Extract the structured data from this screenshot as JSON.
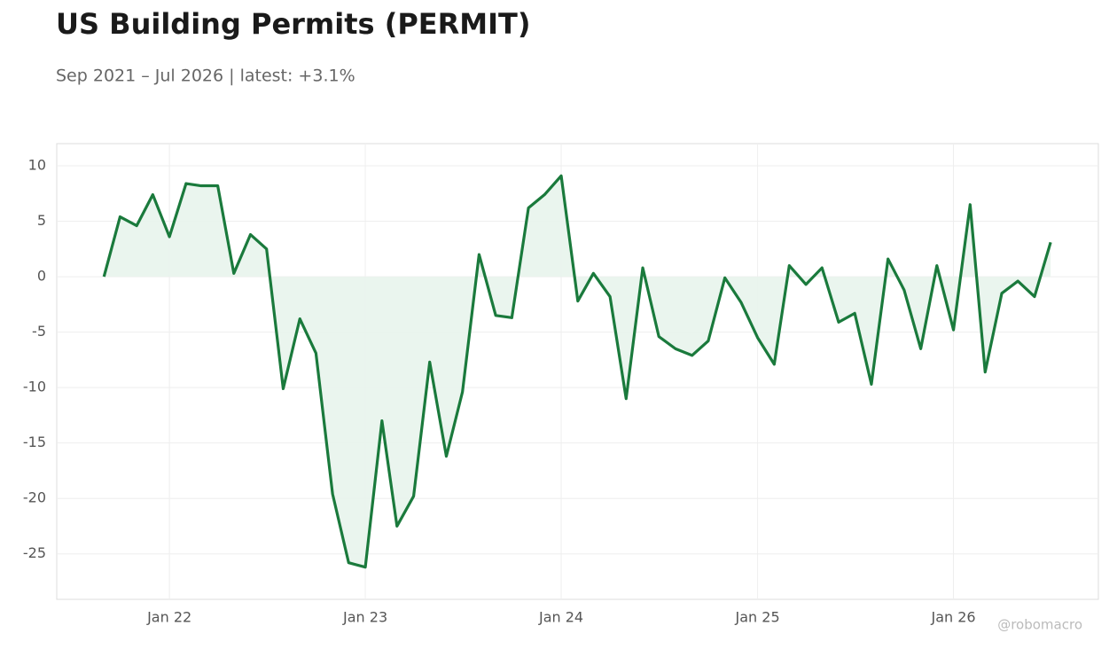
{
  "chart_data": {
    "type": "line",
    "title": "US Building Permits (PERMIT)",
    "subtitle": "Sep 2021 – Jul 2026 | latest: +3.1%",
    "watermark": "@robomacro",
    "x": [
      "2021-09",
      "2021-10",
      "2021-11",
      "2021-12",
      "2022-01",
      "2022-02",
      "2022-03",
      "2022-04",
      "2022-05",
      "2022-06",
      "2022-07",
      "2022-08",
      "2022-09",
      "2022-10",
      "2022-11",
      "2022-12",
      "2023-01",
      "2023-02",
      "2023-03",
      "2023-04",
      "2023-05",
      "2023-06",
      "2023-07",
      "2023-08",
      "2023-09",
      "2023-10",
      "2023-11",
      "2023-12",
      "2024-01",
      "2024-02",
      "2024-03",
      "2024-04",
      "2024-05",
      "2024-06",
      "2024-07",
      "2024-08",
      "2024-09",
      "2024-10",
      "2024-11",
      "2024-12",
      "2025-01",
      "2025-02",
      "2025-03",
      "2025-04",
      "2025-05",
      "2025-06",
      "2025-07",
      "2025-08",
      "2025-09",
      "2025-10",
      "2025-11",
      "2025-12",
      "2026-01",
      "2026-02",
      "2026-03",
      "2026-04",
      "2026-05",
      "2026-06",
      "2026-07"
    ],
    "series": [
      {
        "name": "PERMIT",
        "color": "#1a7a3c",
        "fill": "#e8f4ec",
        "values": [
          0,
          5.4,
          4.6,
          7.4,
          3.6,
          8.4,
          8.2,
          8.2,
          0.3,
          3.8,
          2.5,
          -10.1,
          -3.8,
          -6.9,
          -19.6,
          -25.8,
          -26.2,
          -13.0,
          -22.5,
          -19.8,
          -7.7,
          -16.2,
          -10.4,
          2.0,
          -3.5,
          -3.7,
          6.2,
          7.4,
          9.1,
          -2.2,
          0.3,
          -1.8,
          -11.0,
          0.8,
          -5.4,
          -6.5,
          -7.1,
          -5.8,
          -0.1,
          -2.3,
          -5.5,
          -7.9,
          1.0,
          -0.7,
          0.8,
          -4.1,
          -3.3,
          -9.7,
          1.6,
          -1.2,
          -6.5,
          1.0,
          -4.8,
          6.5,
          -8.6,
          -1.5,
          -0.4,
          -1.8,
          3.1
        ]
      }
    ],
    "xlim": [
      "2021-06-05",
      "2026-09-28"
    ],
    "xticks": [
      {
        "value": "2022-01",
        "label": "Jan 22"
      },
      {
        "value": "2023-01",
        "label": "Jan 23"
      },
      {
        "value": "2024-01",
        "label": "Jan 24"
      },
      {
        "value": "2025-01",
        "label": "Jan 25"
      },
      {
        "value": "2026-01",
        "label": "Jan 26"
      }
    ],
    "ylim": [
      -29.1,
      12
    ],
    "yticks": [
      10,
      5,
      0,
      -5,
      -10,
      -15,
      -20,
      -25
    ],
    "grid": true
  }
}
